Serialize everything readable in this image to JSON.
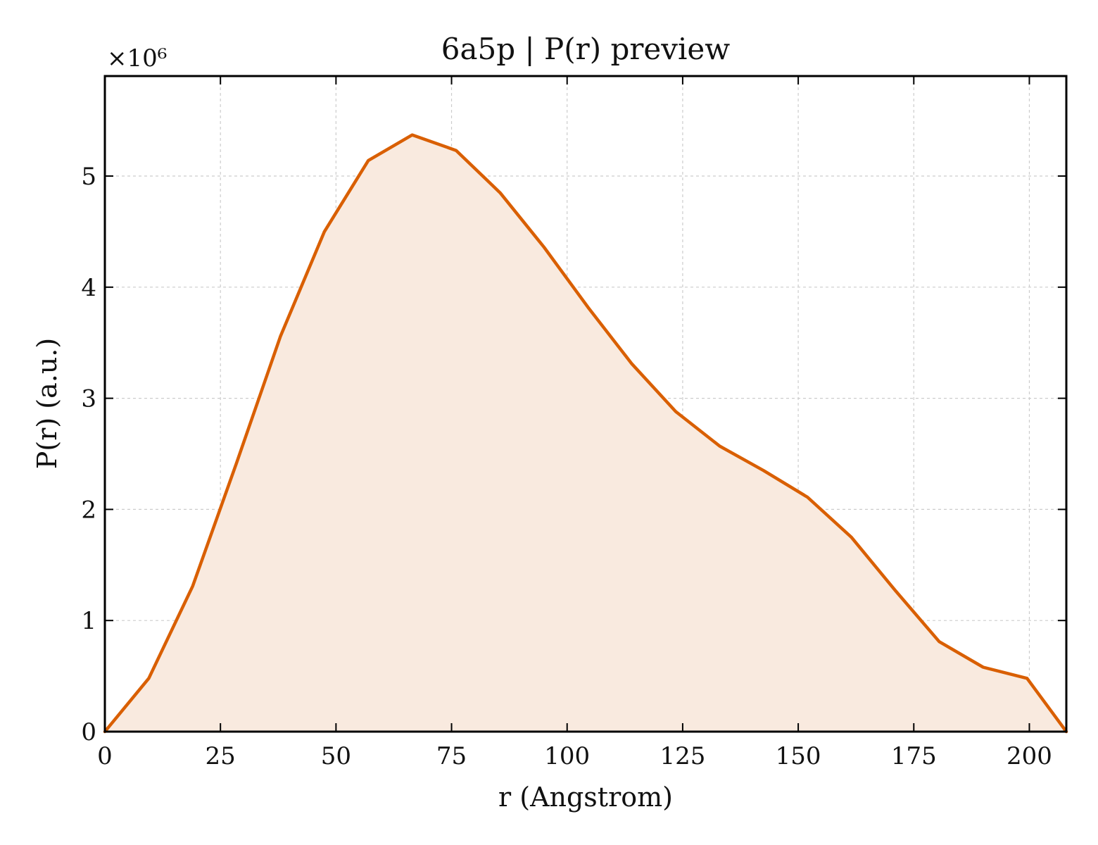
{
  "chart_data": {
    "type": "area",
    "title": "6a5p | P(r) preview",
    "xlabel": "r (Angstrom)",
    "ylabel": "P(r) (a.u.)",
    "y_scale_label": "×10⁶",
    "xlim": [
      0,
      208
    ],
    "ylim": [
      0,
      5.9
    ],
    "x_ticks": [
      0,
      25,
      50,
      75,
      100,
      125,
      150,
      175,
      200
    ],
    "y_ticks": [
      0,
      1,
      2,
      3,
      4,
      5
    ],
    "grid": true,
    "series": [
      {
        "x": [
          0,
          9.5,
          19,
          28.5,
          38,
          47.5,
          57,
          66.5,
          76,
          85.5,
          95,
          104.5,
          114,
          123.5,
          133,
          142.5,
          152,
          161.5,
          171,
          180.5,
          190,
          199.5,
          208
        ],
        "y": [
          0,
          0.48,
          1.31,
          2.42,
          3.56,
          4.5,
          5.14,
          5.37,
          5.23,
          4.85,
          4.36,
          3.82,
          3.31,
          2.88,
          2.57,
          2.35,
          2.11,
          1.75,
          1.27,
          0.81,
          0.58,
          0.48,
          0
        ]
      }
    ],
    "line_color": "#d95f02",
    "fill_color": "#f9eadf"
  }
}
